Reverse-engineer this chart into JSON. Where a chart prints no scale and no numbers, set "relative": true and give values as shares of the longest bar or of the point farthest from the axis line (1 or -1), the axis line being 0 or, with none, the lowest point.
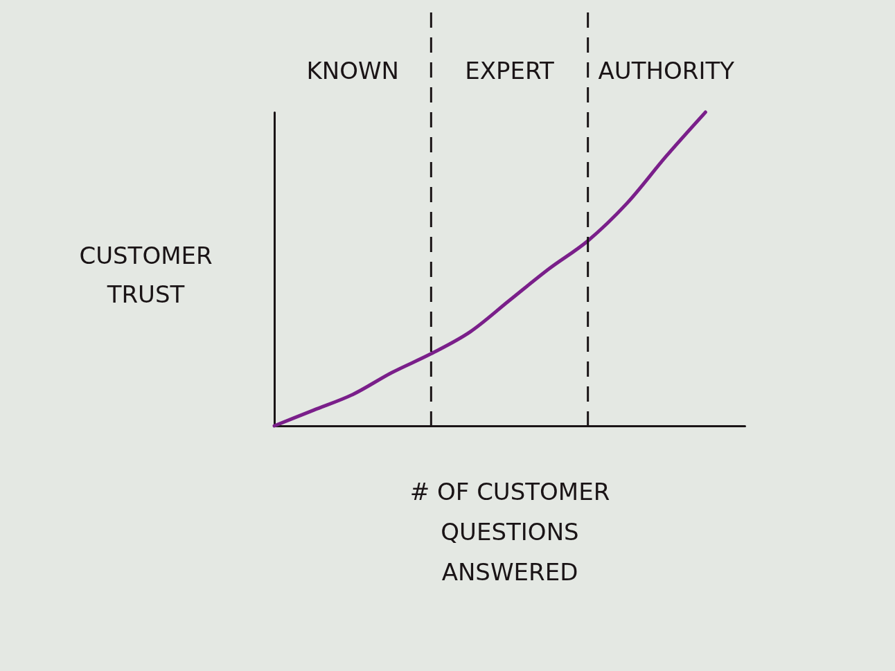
{
  "chart_data": {
    "type": "line",
    "xlabel": "# OF CUSTOMER QUESTIONS ANSWERED",
    "ylabel": "CUSTOMER TRUST",
    "annotations": [
      "KNOWN",
      "EXPERT",
      "AUTHORITY"
    ],
    "categories": [
      null,
      null,
      null,
      null,
      null,
      null,
      null,
      null,
      null,
      null,
      null,
      null,
      null
    ],
    "series": [
      {
        "color": "#7a1f8a",
        "values": [
          0,
          0.05,
          0.1,
          0.17,
          0.23,
          0.3,
          0.4,
          0.5,
          0.59,
          0.71,
          0.86,
          1,
          null
        ]
      }
    ],
    "relative": true,
    "grid": false,
    "line_style": "solid"
  }
}
